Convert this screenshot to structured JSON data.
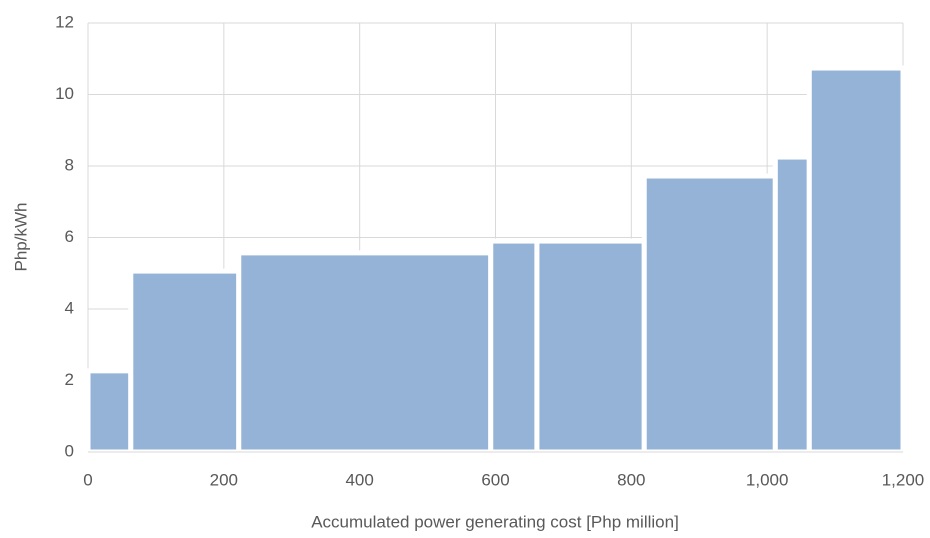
{
  "chart_data": {
    "type": "histogram",
    "x_label": "Accumulated power generating cost [Php million]",
    "y_label": "Php/kWh",
    "bins": [
      0,
      63,
      222,
      593,
      661,
      819,
      1012,
      1062,
      1200
    ],
    "values": [
      2.27,
      5.06,
      5.57,
      5.9,
      5.9,
      7.72,
      8.25,
      10.74
    ],
    "color": "#95b3d7",
    "xlim": [
      0,
      1200
    ],
    "xticks": [
      0,
      200,
      400,
      600,
      800,
      {
        "value": 1000,
        "label": "1,000"
      },
      {
        "value": 1200,
        "label": "1,200"
      }
    ],
    "ylim": [
      0,
      12
    ],
    "yticks": [
      0,
      2,
      4,
      6,
      8,
      10,
      12
    ],
    "grid": true
  }
}
